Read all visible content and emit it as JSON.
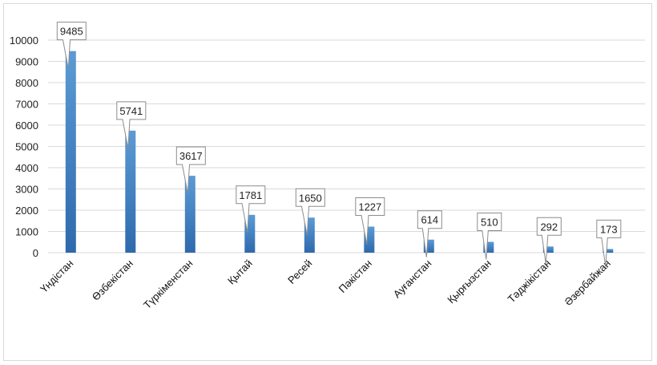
{
  "chart_data": {
    "type": "bar",
    "categories": [
      "Үндістан",
      "Өзбекістан",
      "Түркіменстан",
      "Қытай",
      "Ресей",
      "Пәкістан",
      "Ауғанстан",
      "Қырғызстан",
      "Тәджікістан",
      "Әзербайжан"
    ],
    "values": [
      9485,
      5741,
      3617,
      1781,
      1650,
      1227,
      614,
      510,
      292,
      173
    ],
    "data_labels": [
      "9485",
      "5741",
      "3617",
      "1781",
      "1650",
      "1227",
      "614",
      "510",
      "292",
      "173"
    ],
    "yticks": [
      "0",
      "1000",
      "2000",
      "3000",
      "4000",
      "5000",
      "6000",
      "7000",
      "8000",
      "9000",
      "10000"
    ],
    "ylim": [
      0,
      10000
    ],
    "grid": true,
    "legend": "none",
    "bar_color_top": "#5b9bd5",
    "bar_color_bottom": "#2e69ac"
  }
}
